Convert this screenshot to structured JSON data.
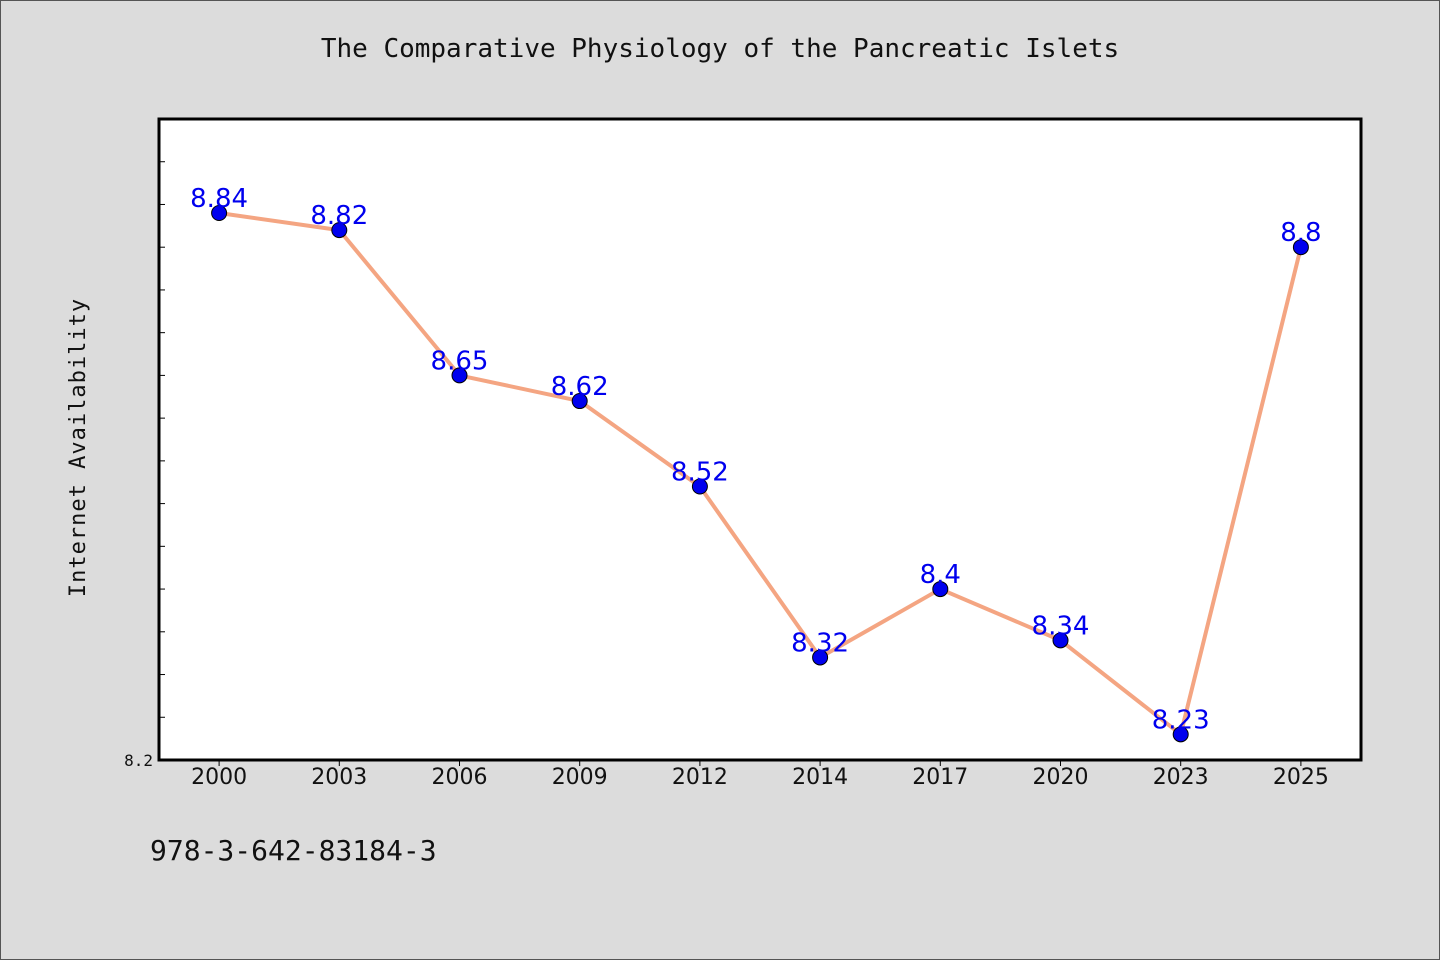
{
  "chart_title": "The Comparative Physiology of the Pancreatic Islets",
  "footer_code": "978-3-642-83184-3",
  "colors": {
    "background": "#dcdcdc",
    "plot_background": "#ffffff",
    "line": "#f4a582",
    "marker": "#0000ee",
    "data_label": "#0000ee"
  },
  "chart_data": {
    "type": "line",
    "title": "The Comparative Physiology of the Pancreatic Islets",
    "xlabel": "",
    "ylabel": "Internet Availability",
    "categories": [
      "2000",
      "2003",
      "2006",
      "2009",
      "2012",
      "2014",
      "2017",
      "2020",
      "2023",
      "2025"
    ],
    "series": [
      {
        "values": [
          8.84,
          8.82,
          8.65,
          8.62,
          8.52,
          8.32,
          8.4,
          8.34,
          8.23,
          8.8
        ],
        "labels": [
          "8.84",
          "8.82",
          "8.65",
          "8.62",
          "8.52",
          "8.32",
          "8.4",
          "8.34",
          "8.23",
          "8.8"
        ]
      }
    ],
    "ylim": [
      8.2,
      8.95
    ],
    "y_tick_labels": [
      "8.2"
    ],
    "grid": false,
    "legend": "none"
  }
}
